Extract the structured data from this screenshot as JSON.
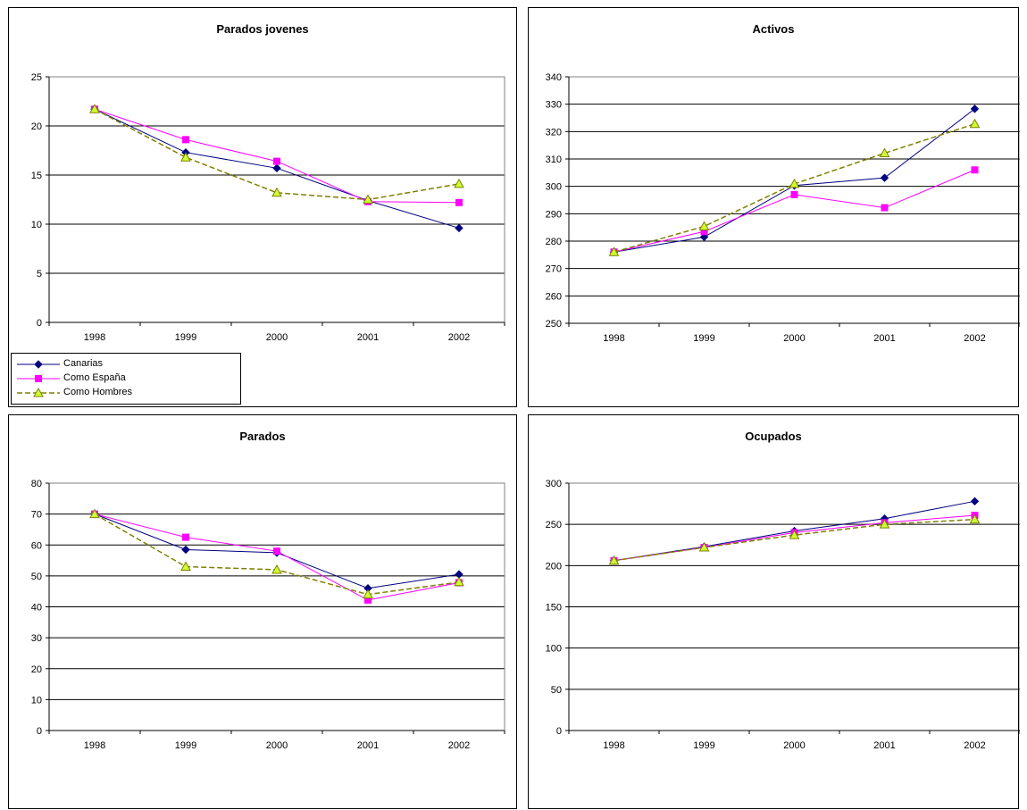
{
  "legend": {
    "items": [
      {
        "label": "Canarias",
        "color": "#000080",
        "marker": "diamond",
        "dash": false
      },
      {
        "label": "Como España",
        "color": "#FF00FF",
        "marker": "square",
        "dash": false
      },
      {
        "label": "Como Hombres",
        "color": "#808000",
        "marker": "triangle",
        "dash": true,
        "marker_fill": "#CCFF33"
      }
    ]
  },
  "chart_data": [
    {
      "type": "line",
      "title": "Parados jovenes",
      "categories": [
        "1998",
        "1999",
        "2000",
        "2001",
        "2002"
      ],
      "ylim": [
        0,
        25
      ],
      "yticks": [
        0,
        5,
        10,
        15,
        20,
        25
      ],
      "grid": true,
      "legend_position": "bottom-left",
      "series": [
        {
          "name": "Canarias",
          "values": [
            21.7,
            17.3,
            15.7,
            12.4,
            9.6
          ]
        },
        {
          "name": "Como España",
          "values": [
            21.7,
            18.6,
            16.4,
            12.3,
            12.2
          ]
        },
        {
          "name": "Como Hombres",
          "values": [
            21.7,
            16.8,
            13.2,
            12.5,
            14.1
          ]
        }
      ]
    },
    {
      "type": "line",
      "title": "Activos",
      "categories": [
        "1998",
        "1999",
        "2000",
        "2001",
        "2002"
      ],
      "ylim": [
        250,
        340
      ],
      "yticks": [
        250,
        260,
        270,
        280,
        290,
        300,
        310,
        320,
        330,
        340
      ],
      "grid": true,
      "series": [
        {
          "name": "Canarias",
          "values": [
            276,
            281.5,
            300.3,
            303.1,
            328.3
          ]
        },
        {
          "name": "Como España",
          "values": [
            276,
            283.5,
            297,
            292.2,
            306
          ]
        },
        {
          "name": "Como Hombres",
          "values": [
            276,
            285.4,
            300.9,
            312.1,
            322.8
          ]
        }
      ]
    },
    {
      "type": "line",
      "title": "Parados",
      "categories": [
        "1998",
        "1999",
        "2000",
        "2001",
        "2002"
      ],
      "ylim": [
        0,
        80
      ],
      "yticks": [
        0,
        10,
        20,
        30,
        40,
        50,
        60,
        70,
        80
      ],
      "grid": true,
      "series": [
        {
          "name": "Canarias",
          "values": [
            70,
            58.5,
            57.5,
            46,
            50.5
          ]
        },
        {
          "name": "Como España",
          "values": [
            70,
            62.5,
            58,
            42.2,
            47.8
          ]
        },
        {
          "name": "Como Hombres",
          "values": [
            70,
            53,
            52,
            44,
            48
          ]
        }
      ]
    },
    {
      "type": "line",
      "title": "Ocupados",
      "categories": [
        "1998",
        "1999",
        "2000",
        "2001",
        "2002"
      ],
      "ylim": [
        0,
        300
      ],
      "yticks": [
        0,
        50,
        100,
        150,
        200,
        250,
        300
      ],
      "grid": true,
      "series": [
        {
          "name": "Canarias",
          "values": [
            206,
            223,
            242,
            257,
            278
          ]
        },
        {
          "name": "Como España",
          "values": [
            206,
            222,
            240,
            252,
            261
          ]
        },
        {
          "name": "Como Hombres",
          "values": [
            206,
            222,
            237,
            250,
            256
          ]
        }
      ]
    }
  ]
}
